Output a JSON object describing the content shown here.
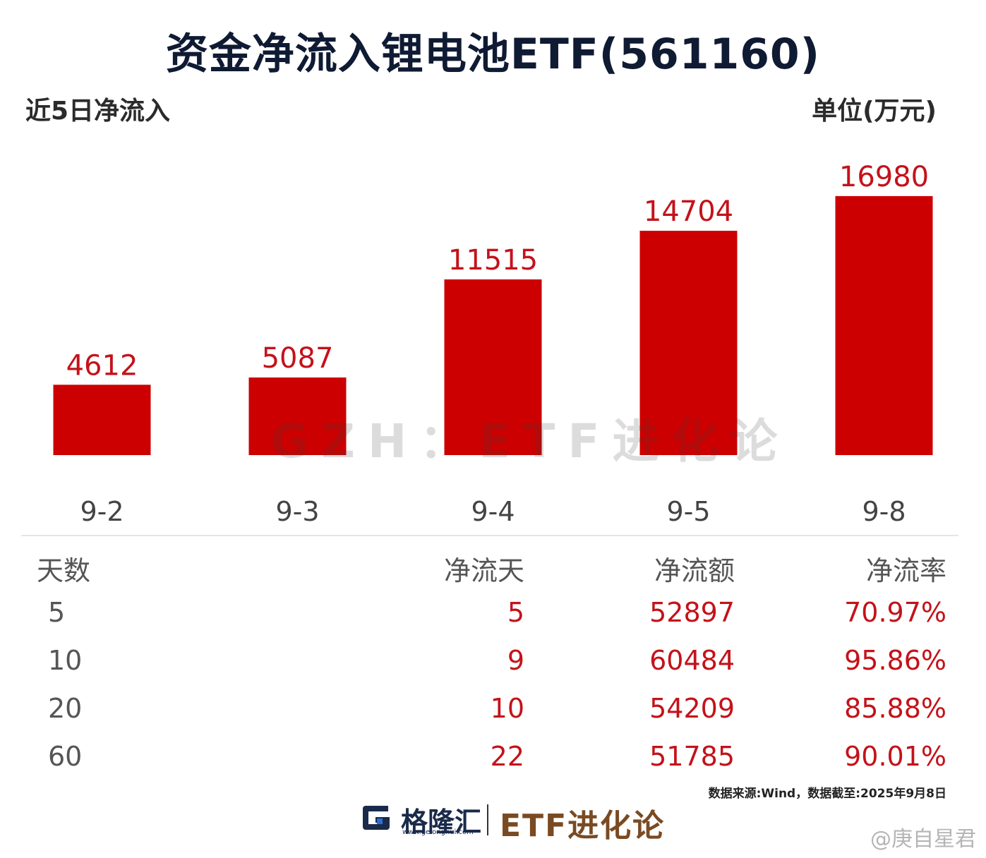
{
  "chart_data": {
    "type": "bar",
    "title": "资金净流入锂电池ETF(561160)",
    "subtitle_left": "近5日净流入",
    "unit_label": "单位(万元)",
    "categories": [
      "9-2",
      "9-3",
      "9-4",
      "9-5",
      "9-8"
    ],
    "values": [
      4612,
      5087,
      11515,
      14704,
      16980
    ],
    "value_labels": [
      "4612",
      "5087",
      "11515",
      "14704",
      "16980"
    ],
    "ylim": [
      0,
      18500
    ],
    "grid": false,
    "bar_color": "#cc0000",
    "label_color": "#c4121a"
  },
  "watermark": "GZH：ETF进化论",
  "table": {
    "headers": [
      "天数",
      "净流天",
      "净流额",
      "净流率"
    ],
    "rows": [
      [
        "5",
        "5",
        "52897",
        "70.97%"
      ],
      [
        "10",
        "9",
        "60484",
        "95.86%"
      ],
      [
        "20",
        "10",
        "54209",
        "85.88%"
      ],
      [
        "60",
        "22",
        "51785",
        "90.01%"
      ]
    ]
  },
  "source": "数据来源:Wind，数据截至:2025年9月8日",
  "footer": {
    "logo_icon": "gelonghui-logo-icon",
    "logo_name": "格隆汇",
    "logo_url": "www.gelonghui.com",
    "brand": "ETF进化论",
    "weibo_handle": "@庚自星君"
  }
}
